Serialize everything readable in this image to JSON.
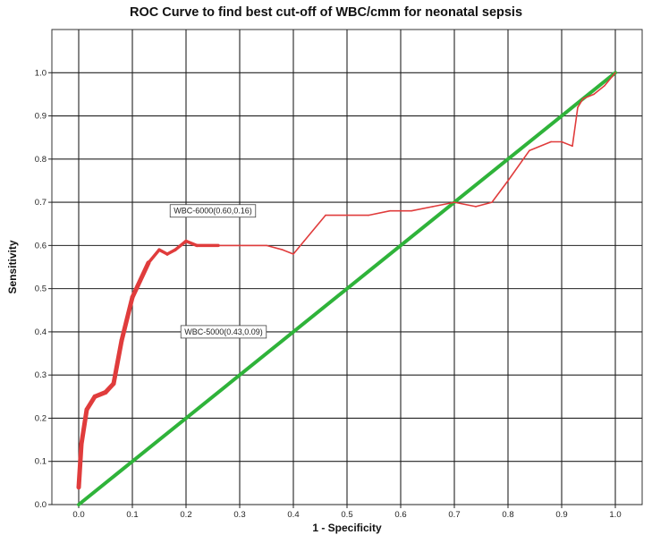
{
  "chart_data": {
    "type": "line",
    "title": "ROC Curve to find best cut-off of WBC/cmm for neonatal sepsis",
    "xlabel": "1 - Specificity",
    "ylabel": "Sensitivity",
    "xlim": [
      -0.05,
      1.05
    ],
    "ylim": [
      0,
      1.1
    ],
    "x_ticks": [
      "0.0",
      "0.1",
      "0.2",
      "0.3",
      "0.4",
      "0.5",
      "0.6",
      "0.7",
      "0.8",
      "0.9",
      "1.0"
    ],
    "y_ticks": [
      "0.0",
      "0.1",
      "0.2",
      "0.3",
      "0.4",
      "0.5",
      "0.6",
      "0.7",
      "0.8",
      "0.9",
      "1.0"
    ],
    "grid": true,
    "legend": "none",
    "series": [
      {
        "color": "#e03c3c",
        "x": [
          0.0,
          0.005,
          0.015,
          0.03,
          0.05,
          0.065,
          0.08,
          0.1,
          0.13,
          0.15,
          0.165,
          0.18,
          0.2,
          0.22,
          0.26,
          0.3,
          0.35,
          0.38,
          0.4,
          0.42,
          0.46,
          0.5,
          0.54,
          0.58,
          0.62,
          0.66,
          0.7,
          0.74,
          0.77,
          0.8,
          0.84,
          0.88,
          0.9,
          0.92,
          0.93,
          0.94,
          0.96,
          0.98,
          1.0
        ],
        "y": [
          0.04,
          0.14,
          0.22,
          0.25,
          0.26,
          0.28,
          0.38,
          0.48,
          0.56,
          0.59,
          0.58,
          0.59,
          0.61,
          0.6,
          0.6,
          0.6,
          0.6,
          0.59,
          0.58,
          0.61,
          0.67,
          0.67,
          0.67,
          0.68,
          0.68,
          0.69,
          0.7,
          0.69,
          0.7,
          0.75,
          0.82,
          0.84,
          0.84,
          0.83,
          0.92,
          0.94,
          0.95,
          0.97,
          1.0
        ]
      },
      {
        "color": "#2fb33a",
        "x": [
          0.0,
          1.0
        ],
        "y": [
          0.0,
          1.0
        ]
      }
    ],
    "annotations": [
      {
        "text": "WBC-6000(0.60,0.16)",
        "x": 0.25,
        "y": 0.68
      },
      {
        "text": "WBC-5000(0.43,0.09)",
        "x": 0.27,
        "y": 0.4
      }
    ]
  }
}
